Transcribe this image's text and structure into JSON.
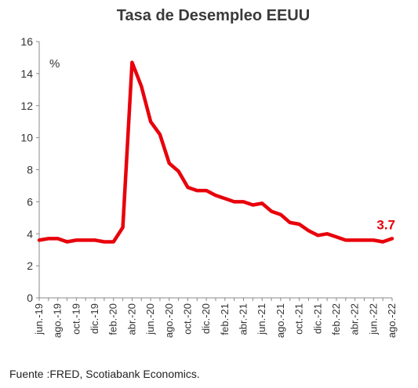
{
  "chart_data": {
    "type": "line",
    "title": "Tasa de Desempleo EEUU",
    "unit_label": "%",
    "ylim": [
      0,
      16
    ],
    "yticks": [
      0,
      2,
      4,
      6,
      8,
      10,
      12,
      14,
      16
    ],
    "x": [
      "jun.-19",
      "jul.-19",
      "ago.-19",
      "sep.-19",
      "oct.-19",
      "nov.-19",
      "dic.-19",
      "ene.-20",
      "feb.-20",
      "mar.-20",
      "abr.-20",
      "may.-20",
      "jun.-20",
      "jul.-20",
      "ago.-20",
      "sep.-20",
      "oct.-20",
      "nov.-20",
      "dic.-20",
      "ene.-21",
      "feb.-21",
      "mar.-21",
      "abr.-21",
      "may.-21",
      "jun.-21",
      "jul.-21",
      "ago.-21",
      "sep.-21",
      "oct.-21",
      "nov.-21",
      "dic.-21",
      "ene.-22",
      "feb.-22",
      "mar.-22",
      "abr.-22",
      "may.-22",
      "jun.-22",
      "jul.-22",
      "ago.-22"
    ],
    "xtick_labels": [
      "jun.-19",
      "ago.-19",
      "oct.-19",
      "dic.-19",
      "feb.-20",
      "abr.-20",
      "jun.-20",
      "ago.-20",
      "oct.-20",
      "dic.-20",
      "feb.-21",
      "abr.-21",
      "jun.-21",
      "ago.-21",
      "oct.-21",
      "dic.-21",
      "feb.-22",
      "abr.-22",
      "jun.-22",
      "ago.-22"
    ],
    "series": [
      {
        "values": [
          3.6,
          3.7,
          3.7,
          3.5,
          3.6,
          3.6,
          3.6,
          3.5,
          3.5,
          4.4,
          14.7,
          13.2,
          11.0,
          10.2,
          8.4,
          7.9,
          6.9,
          6.7,
          6.7,
          6.4,
          6.2,
          6.0,
          6.0,
          5.8,
          5.9,
          5.4,
          5.2,
          4.7,
          4.6,
          4.2,
          3.9,
          4.0,
          3.8,
          3.6,
          3.6,
          3.6,
          3.6,
          3.5,
          3.7
        ],
        "color": "#e8000b"
      }
    ],
    "end_label": "3.7",
    "grid": false
  },
  "source_note": "Fuente :FRED,  Scotiabank Economics."
}
